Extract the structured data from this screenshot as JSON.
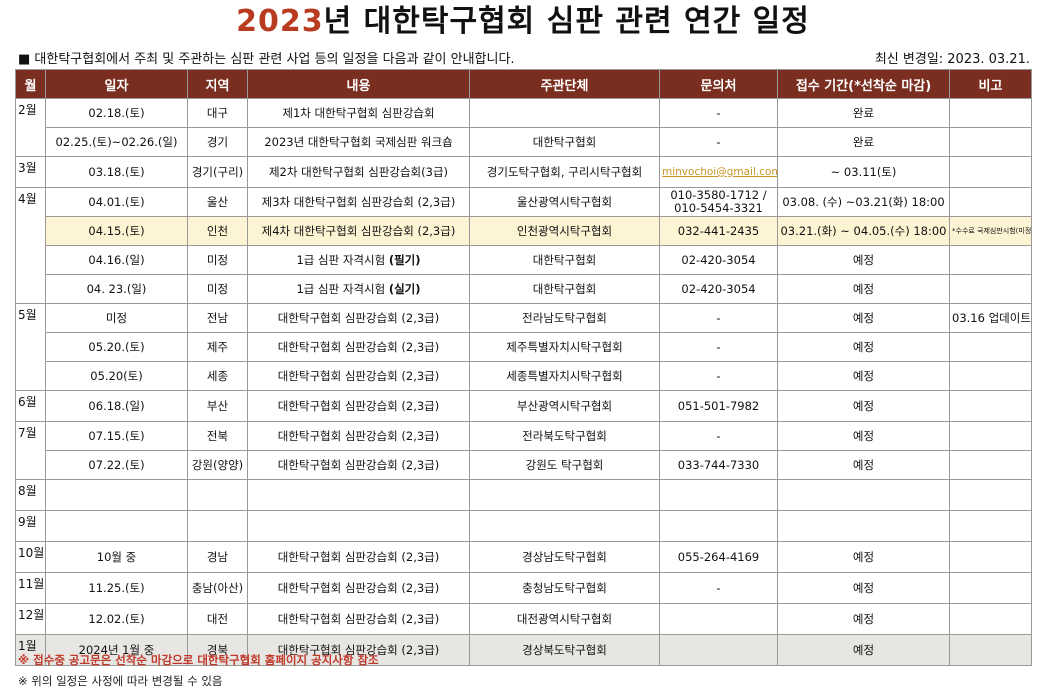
{
  "title": {
    "year": "2023",
    "rest": "년 대한탁구협회 심판 관련 연간 일정"
  },
  "subtitle": "■ 대한탁구협회에서 주최 및 주관하는 심판 관련 사업 등의 일정을 다음과 같이 안내합니다.",
  "updated": "최신 변경일: 2023. 03.21.",
  "headers": [
    "월",
    "일자",
    "지역",
    "내용",
    "주관단체",
    "문의처",
    "접수 기간(*선착순 마감)",
    "비고"
  ],
  "rows": [
    {
      "date": "02.18.(토)",
      "region": "대구",
      "content": "제1차 대한탁구협회 심판강습회",
      "host": "",
      "contact": "-",
      "period": "완료",
      "note": ""
    },
    {
      "date": "02.25.(토)~02.26.(일)",
      "region": "경기",
      "content": "2023년 대한탁구협회 국제심판 워크숍",
      "host": "대한탁구협회",
      "contact": "-",
      "period": "완료",
      "note": ""
    },
    {
      "date": "03.18.(토)",
      "region": "경기(구리)",
      "content": "제2차 대한탁구협회 심판강습회(3급)",
      "host": "경기도탁구협회, 구리시탁구협회",
      "contact": "minvochoi@gmail.com",
      "period": "~ 03.11(토)",
      "note": ""
    },
    {
      "date": "04.01.(토)",
      "region": "울산",
      "content": "제3차 대한탁구협회 심판강습회 (2,3급)",
      "host": "울산광역시탁구협회",
      "contact": "010-3580-1712 /",
      "contact2": "010-5454-3321",
      "period": "03.08. (수) ~03.21(화) 18:00",
      "note": ""
    },
    {
      "date": "04.15.(토)",
      "region": "인천",
      "content": "제4차 대한탁구협회 심판강습회 (2,3급)",
      "host": "인천광역시탁구협회",
      "contact": "032-441-2435",
      "period": "03.21.(화) ~ 04.05.(수) 18:00",
      "note": "*수수료 국제심판시험(미정)"
    },
    {
      "date": "04.16.(일)",
      "region": "미정",
      "content": "1급 심판 자격시험",
      "content_b": "(필기)",
      "host": "대한탁구협회",
      "contact": "02-420-3054",
      "period": "예정",
      "note": ""
    },
    {
      "date": "04. 23.(일)",
      "region": "미정",
      "content": "1급 심판 자격시험",
      "content_b": "(실기)",
      "host": "대한탁구협회",
      "contact": "02-420-3054",
      "period": "예정",
      "note": ""
    },
    {
      "date": "미정",
      "region": "전남",
      "content": "대한탁구협회 심판강습회 (2,3급)",
      "host": "전라남도탁구협회",
      "contact": "-",
      "period": "예정",
      "note": "03.16 업데이트"
    },
    {
      "date": "05.20.(토)",
      "region": "제주",
      "content": "대한탁구협회 심판강습회 (2,3급)",
      "host": "제주특별자치시탁구협회",
      "contact": "-",
      "period": "예정",
      "note": ""
    },
    {
      "date": "05.20(토)",
      "region": "세종",
      "content": "대한탁구협회 심판강습회 (2,3급)",
      "host": "세종특별자치시탁구협회",
      "contact": "-",
      "period": "예정",
      "note": ""
    },
    {
      "date": "06.18.(일)",
      "region": "부산",
      "content": "대한탁구협회 심판강습회 (2,3급)",
      "host": "부산광역시탁구협회",
      "contact": "051-501-7982",
      "period": "예정",
      "note": ""
    },
    {
      "date": "07.15.(토)",
      "region": "전북",
      "content": "대한탁구협회 심판강습회 (2,3급)",
      "host": "전라북도탁구협회",
      "contact": "-",
      "period": "예정",
      "note": ""
    },
    {
      "date": "07.22.(토)",
      "region": "강원(양양)",
      "content": "대한탁구협회 심판강습회 (2,3급)",
      "host": "강원도 탁구협회",
      "contact": "033-744-7330",
      "period": "예정",
      "note": ""
    },
    {
      "date": "",
      "region": "",
      "content": "",
      "host": "",
      "contact": "",
      "period": "",
      "note": ""
    },
    {
      "date": "",
      "region": "",
      "content": "",
      "host": "",
      "contact": "",
      "period": "",
      "note": ""
    },
    {
      "date": "10월 중",
      "region": "경남",
      "content": "대한탁구협회 심판강습회 (2,3급)",
      "host": "경상남도탁구협회",
      "contact": "055-264-4169",
      "period": "예정",
      "note": ""
    },
    {
      "date": "11.25.(토)",
      "region": "충남(아산)",
      "content": "대한탁구협회 심판강습회 (2,3급)",
      "host": "충청남도탁구협회",
      "contact": "-",
      "period": "예정",
      "note": ""
    },
    {
      "date": "12.02.(토)",
      "region": "대전",
      "content": "대한탁구협회 심판강습회 (2,3급)",
      "host": "대전광역시탁구협회",
      "contact": "",
      "period": "예정",
      "note": ""
    },
    {
      "date": "2024년 1월 중",
      "region": "경북",
      "content": "대한탁구협회 심판강습회 (2,3급)",
      "host": "경상북도탁구협회",
      "contact": "",
      "period": "예정",
      "note": ""
    }
  ],
  "months": [
    "2월",
    "3월",
    "4월",
    "5월",
    "6월",
    "7월",
    "8월",
    "9월",
    "10월",
    "11월",
    "12월",
    "1월"
  ],
  "notes": [
    "※ 접수중 공고문은 선착순 마감으로 대한탁구협회 홈페이지 공지사항 참조",
    "※ 위의 일정은 사정에 따라 변경될 수 있음"
  ]
}
